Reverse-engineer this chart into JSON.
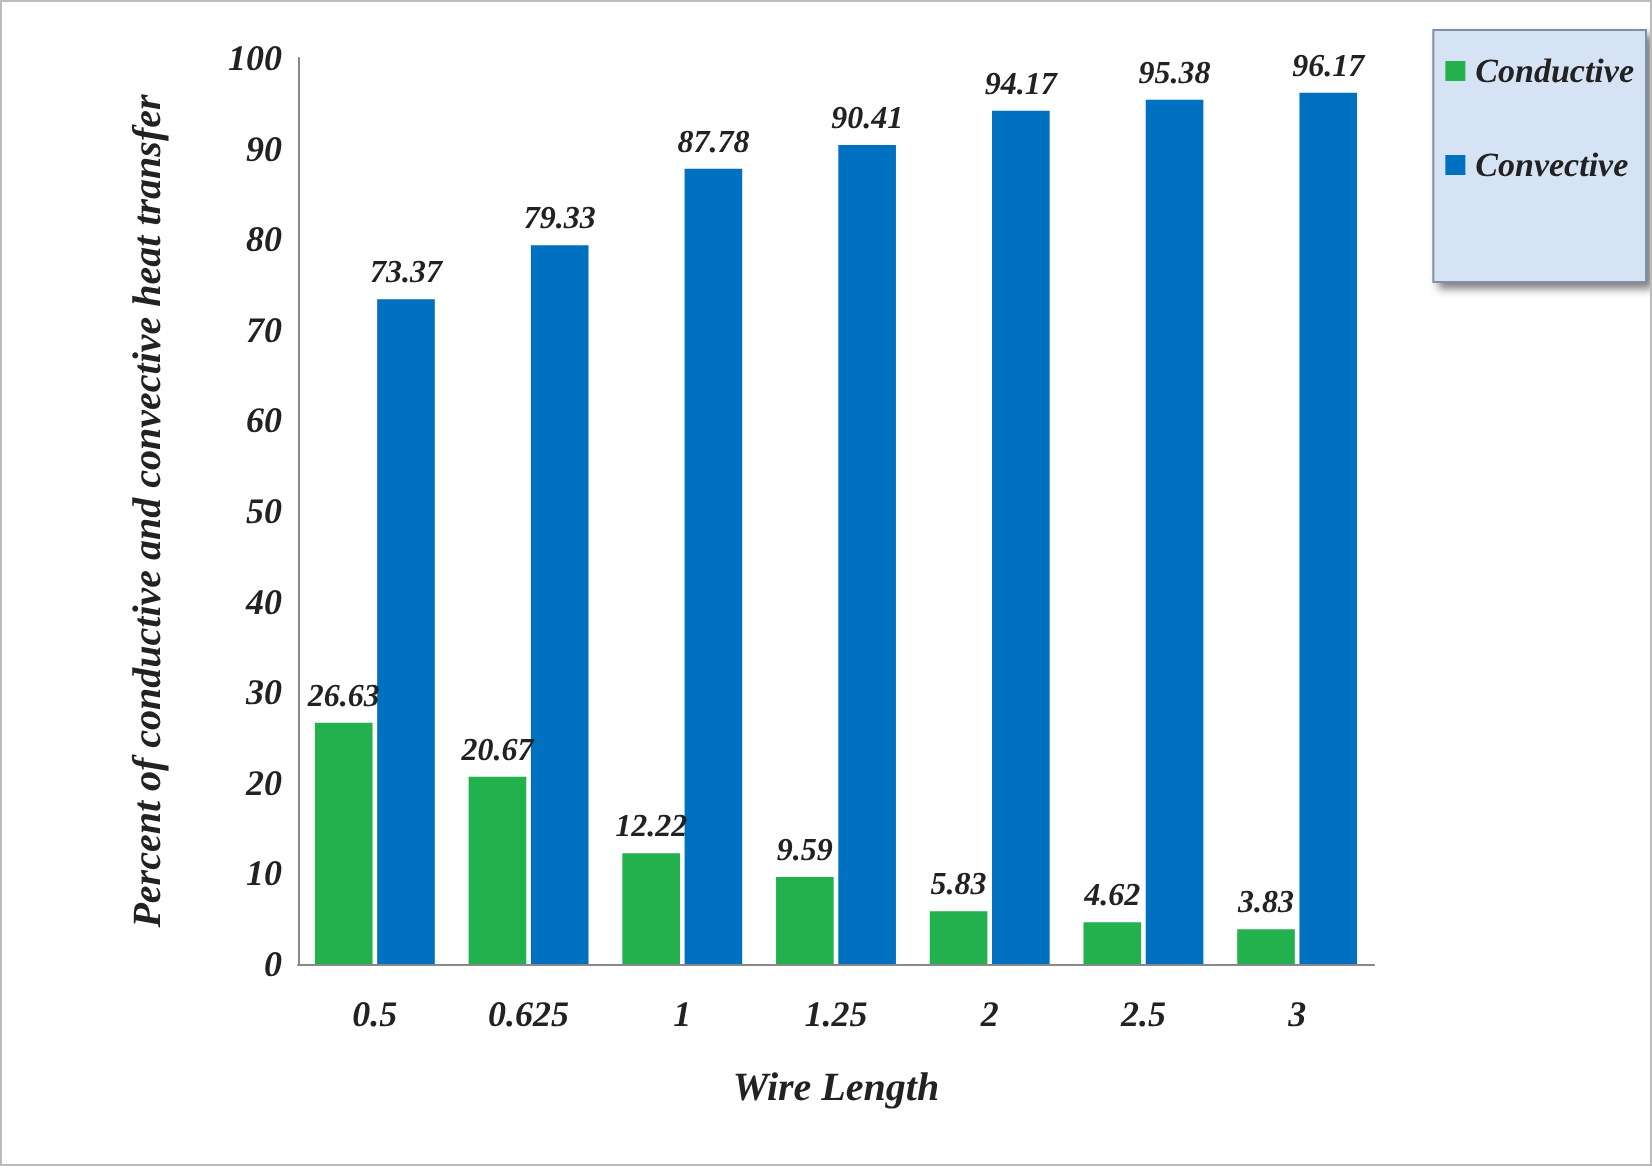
{
  "chart_data": {
    "type": "bar",
    "xlabel": "Wire Length",
    "ylabel": "Percent of conductive and convective heat transfer",
    "categories": [
      "0.5",
      "0.625",
      "1",
      "1.25",
      "2",
      "2.5",
      "3"
    ],
    "series": [
      {
        "name": "Conductive",
        "color": "#22b14c",
        "values": [
          26.63,
          20.67,
          12.22,
          9.59,
          5.83,
          4.62,
          3.83
        ]
      },
      {
        "name": "Convective",
        "color": "#0070c0",
        "values": [
          73.37,
          79.33,
          87.78,
          90.41,
          94.17,
          95.38,
          96.17
        ]
      }
    ],
    "ylim": [
      0,
      100
    ],
    "yticks": [
      0,
      10,
      20,
      30,
      40,
      50,
      60,
      70,
      80,
      90,
      100
    ],
    "grid": false,
    "legend": "top right",
    "data_labels": true
  }
}
